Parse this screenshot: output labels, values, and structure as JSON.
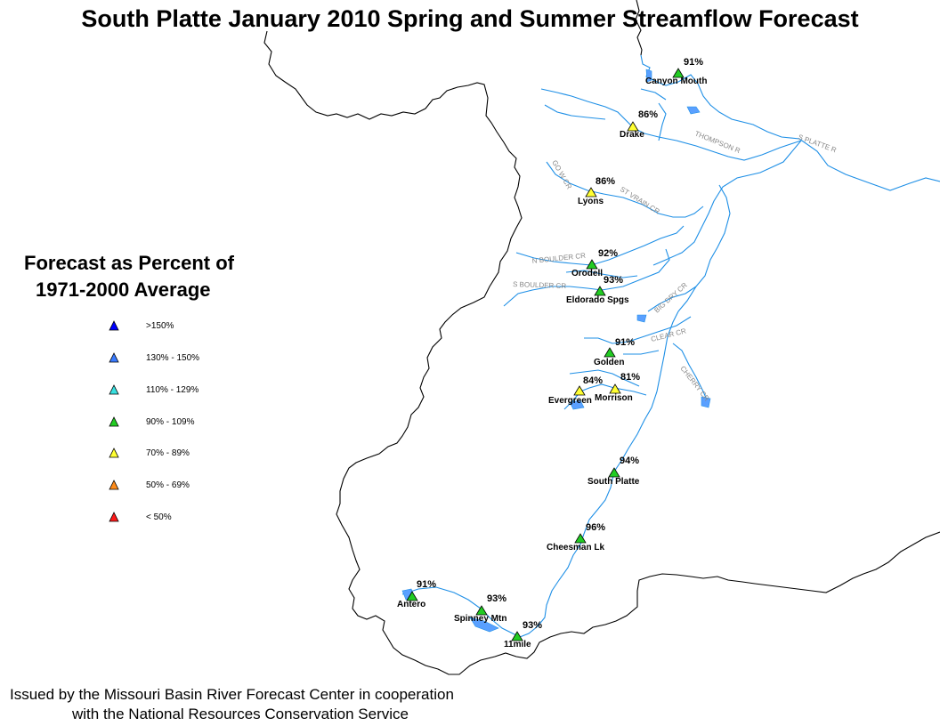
{
  "title": "South Platte January 2010 Spring and Summer Streamflow Forecast",
  "legend": {
    "title_line1": "Forecast as Percent of",
    "title_line2": "1971-2000 Average",
    "items": [
      {
        "label": ">150%",
        "color": "#0000ff"
      },
      {
        "label": "130% - 150%",
        "color": "#3a7bff"
      },
      {
        "label": "110% - 129%",
        "color": "#38e0e0"
      },
      {
        "label": "90% - 109%",
        "color": "#22cc22"
      },
      {
        "label": "70% - 89%",
        "color": "#ffff33"
      },
      {
        "label": "50% - 69%",
        "color": "#ff8c1a"
      },
      {
        "label": "< 50%",
        "color": "#ff1a1a"
      }
    ]
  },
  "stations": [
    {
      "name": "Canyon Mouth",
      "percent": "91%",
      "color": "#22cc22"
    },
    {
      "name": "Drake",
      "percent": "86%",
      "color": "#ffff33"
    },
    {
      "name": "Lyons",
      "percent": "86%",
      "color": "#ffff33"
    },
    {
      "name": "Orodell",
      "percent": "92%",
      "color": "#22cc22"
    },
    {
      "name": "Eldorado Spgs",
      "percent": "93%",
      "color": "#22cc22"
    },
    {
      "name": "Golden",
      "percent": "91%",
      "color": "#22cc22"
    },
    {
      "name": "Evergreen",
      "percent": "84%",
      "color": "#ffff33"
    },
    {
      "name": "Morrison",
      "percent": "81%",
      "color": "#ffff33"
    },
    {
      "name": "South Platte",
      "percent": "94%",
      "color": "#22cc22"
    },
    {
      "name": "Cheesman Lk",
      "percent": "96%",
      "color": "#22cc22"
    },
    {
      "name": "Antero",
      "percent": "91%",
      "color": "#22cc22"
    },
    {
      "name": "Spinney Mtn",
      "percent": "93%",
      "color": "#22cc22"
    },
    {
      "name": "11mile",
      "percent": "93%",
      "color": "#22cc22"
    }
  ],
  "rivers": [
    "THOMPSON R",
    "S PLATTE R",
    "GO W CR",
    "ST VRAIN CR",
    "N BOULDER CR",
    "S BOULDER CR",
    "BIG DRY CR",
    "CLEAR CR",
    "CHERRY CR"
  ],
  "footer": {
    "line1": "Issued by the Missouri Basin River Forecast Center in cooperation",
    "line2": "with the National Resources Conservation Service"
  },
  "colors": {
    "river": "#1e8fe6",
    "lake": "#5aa0ff",
    "boundary": "#000000"
  }
}
